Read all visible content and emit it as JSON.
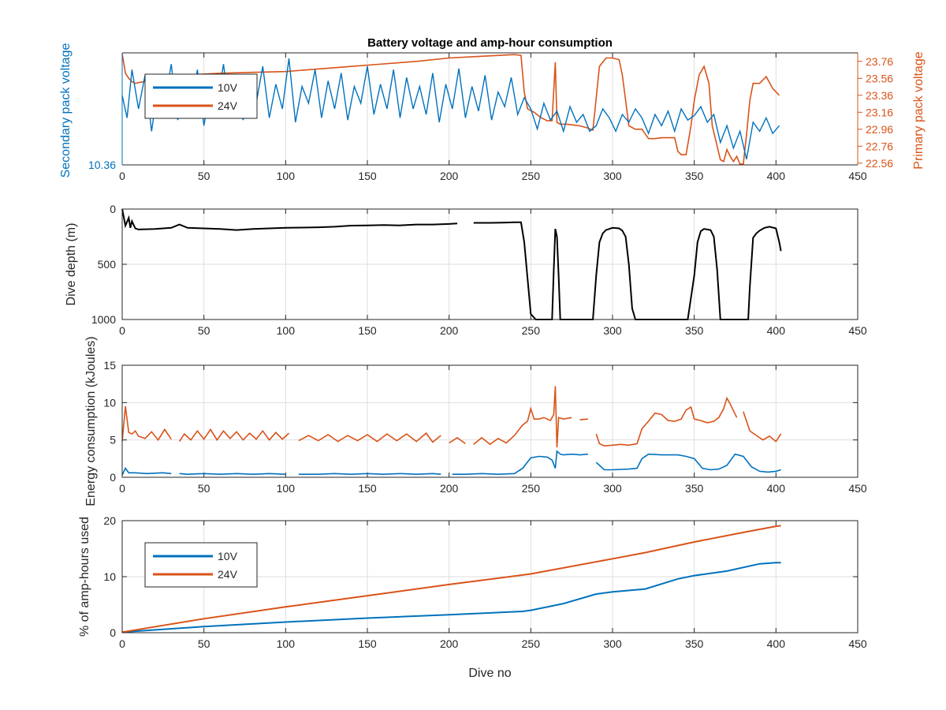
{
  "figure": {
    "title": "Battery voltage and amp-hour consumption",
    "xlabel": "Dive no",
    "colors": {
      "blue": "#0072bd",
      "orange": "#d95319",
      "black": "#000000",
      "grid": "#dedede",
      "axis": "#262626"
    }
  },
  "chart_data": [
    {
      "type": "line",
      "panel": "voltage",
      "title": "Battery voltage and amp-hour consumption",
      "xlabel": "",
      "ylabel_left": "Secondary pack voltage",
      "ylabel_right": "Primary pack voltage",
      "xlim": [
        0,
        450
      ],
      "x_ticks": [
        "0",
        "50",
        "100",
        "150",
        "200",
        "250",
        "300",
        "350",
        "400",
        "450"
      ],
      "y_left_ticks": [
        "10.36"
      ],
      "y_right_ticks": [
        "22.56",
        "22.76",
        "22.96",
        "23.16",
        "23.36",
        "23.56",
        "23.76"
      ],
      "ylim_right": [
        22.54,
        23.86
      ],
      "legend": {
        "placement": "top-left",
        "entries": [
          "10V",
          "24V"
        ]
      },
      "grid": true,
      "series": [
        {
          "name": "10V",
          "axis": "left",
          "color": "#0072bd",
          "x": [
            0,
            3,
            6,
            10,
            14,
            18,
            22,
            26,
            30,
            34,
            38,
            42,
            46,
            50,
            54,
            58,
            62,
            66,
            70,
            74,
            78,
            82,
            86,
            90,
            94,
            98,
            102,
            106,
            110,
            114,
            118,
            122,
            126,
            130,
            134,
            138,
            142,
            146,
            150,
            154,
            158,
            162,
            166,
            170,
            174,
            178,
            182,
            186,
            190,
            194,
            198,
            202,
            206,
            210,
            214,
            218,
            222,
            226,
            230,
            234,
            238,
            242,
            246,
            250,
            254,
            258,
            262,
            266,
            270,
            274,
            278,
            282,
            286,
            290,
            294,
            298,
            302,
            306,
            310,
            314,
            318,
            322,
            326,
            330,
            334,
            338,
            342,
            346,
            350,
            354,
            358,
            362,
            366,
            370,
            374,
            378,
            382,
            386,
            390,
            394,
            398,
            402
          ],
          "y": [
            0.62,
            0.42,
            0.85,
            0.5,
            0.8,
            0.3,
            0.72,
            0.55,
            0.9,
            0.4,
            0.75,
            0.5,
            0.85,
            0.35,
            0.7,
            0.52,
            0.9,
            0.45,
            0.68,
            0.4,
            0.78,
            0.55,
            0.88,
            0.42,
            0.72,
            0.5,
            0.95,
            0.38,
            0.7,
            0.55,
            0.85,
            0.42,
            0.75,
            0.5,
            0.82,
            0.4,
            0.7,
            0.55,
            0.88,
            0.45,
            0.72,
            0.5,
            0.85,
            0.42,
            0.78,
            0.5,
            0.7,
            0.45,
            0.82,
            0.38,
            0.72,
            0.5,
            0.86,
            0.42,
            0.7,
            0.48,
            0.8,
            0.4,
            0.65,
            0.52,
            0.78,
            0.45,
            0.6,
            0.5,
            0.32,
            0.55,
            0.4,
            0.48,
            0.3,
            0.52,
            0.38,
            0.45,
            0.3,
            0.35,
            0.5,
            0.42,
            0.3,
            0.45,
            0.38,
            0.5,
            0.42,
            0.28,
            0.45,
            0.35,
            0.48,
            0.3,
            0.5,
            0.4,
            0.44,
            0.52,
            0.38,
            0.45,
            0.2,
            0.35,
            0.15,
            0.3,
            0.05,
            0.38,
            0.3,
            0.42,
            0.28,
            0.35
          ]
        },
        {
          "name": "24V",
          "axis": "right",
          "color": "#d95319",
          "x": [
            0,
            2,
            4,
            6,
            8,
            20,
            40,
            60,
            80,
            100,
            120,
            140,
            160,
            180,
            200,
            220,
            240,
            244,
            246,
            248,
            252,
            256,
            260,
            263,
            265,
            266,
            268,
            272,
            276,
            280,
            284,
            288,
            292,
            296,
            300,
            304,
            306,
            308,
            310,
            314,
            318,
            322,
            326,
            330,
            334,
            338,
            340,
            342,
            345,
            348,
            350,
            353,
            356,
            359,
            361,
            364,
            366,
            368,
            370,
            372,
            374,
            376,
            378,
            380,
            382,
            384,
            386,
            388,
            390,
            394,
            398,
            402
          ],
          "y": [
            23.85,
            23.62,
            23.56,
            23.52,
            23.5,
            23.55,
            23.6,
            23.62,
            23.63,
            23.64,
            23.67,
            23.7,
            23.73,
            23.76,
            23.8,
            23.82,
            23.84,
            23.83,
            23.4,
            23.2,
            23.16,
            23.1,
            23.06,
            23.06,
            23.75,
            23.04,
            23.02,
            23.02,
            23.01,
            23.0,
            22.98,
            22.95,
            23.7,
            23.8,
            23.8,
            23.78,
            23.6,
            23.3,
            23.0,
            22.96,
            22.96,
            22.85,
            22.85,
            22.86,
            22.86,
            22.86,
            22.7,
            22.66,
            22.66,
            23.0,
            23.3,
            23.6,
            23.7,
            23.5,
            23.0,
            22.76,
            22.6,
            22.58,
            22.72,
            22.64,
            22.58,
            22.64,
            22.55,
            22.55,
            22.9,
            23.3,
            23.5,
            23.5,
            23.5,
            23.58,
            23.44,
            23.36
          ]
        }
      ]
    },
    {
      "type": "line",
      "panel": "depth",
      "title": "",
      "xlabel": "",
      "ylabel": "Dive depth (m)",
      "xlim": [
        0,
        450
      ],
      "ylim": [
        0,
        1000
      ],
      "y_reversed": true,
      "x_ticks": [
        "0",
        "50",
        "100",
        "150",
        "200",
        "250",
        "300",
        "350",
        "400",
        "450"
      ],
      "y_ticks": [
        "0",
        "500",
        "1000"
      ],
      "grid": true,
      "series": [
        {
          "name": "",
          "color": "#000000",
          "x": [
            0,
            2,
            4,
            5,
            6,
            8,
            10,
            20,
            30,
            35,
            40,
            50,
            60,
            70,
            80,
            90,
            100,
            110,
            120,
            130,
            140,
            150,
            160,
            170,
            180,
            190,
            200,
            205,
            210,
            215,
            225,
            235,
            240,
            244,
            246,
            250,
            253,
            256,
            260,
            263,
            264,
            265,
            266,
            267,
            268,
            270,
            275,
            285,
            288,
            290,
            292,
            294,
            296,
            300,
            304,
            306,
            308,
            310,
            312,
            314,
            316,
            320,
            330,
            340,
            346,
            350,
            352,
            354,
            356,
            360,
            362,
            364,
            366,
            368,
            370,
            375,
            383,
            384,
            386,
            388,
            390,
            393,
            396,
            400,
            402,
            403
          ],
          "y": [
            0,
            150,
            80,
            170,
            110,
            175,
            185,
            180,
            170,
            140,
            170,
            175,
            180,
            190,
            180,
            175,
            170,
            168,
            165,
            160,
            150,
            148,
            145,
            148,
            140,
            140,
            135,
            130,
            null,
            125,
            125,
            122,
            120,
            120,
            300,
            950,
            1000,
            1000,
            1000,
            1000,
            560,
            180,
            250,
            600,
            1000,
            1000,
            1000,
            1000,
            1000,
            600,
            300,
            220,
            190,
            170,
            175,
            195,
            250,
            500,
            900,
            1000,
            1000,
            1000,
            1000,
            1000,
            1000,
            600,
            300,
            200,
            180,
            190,
            250,
            550,
            1000,
            1000,
            1000,
            1000,
            1000,
            700,
            260,
            220,
            195,
            170,
            160,
            175,
            300,
            380
          ]
        }
      ]
    },
    {
      "type": "line",
      "panel": "energy",
      "title": "",
      "xlabel": "",
      "ylabel": "Energy consumption (kJoules)",
      "xlim": [
        0,
        450
      ],
      "ylim": [
        0,
        15
      ],
      "x_ticks": [
        "0",
        "50",
        "100",
        "150",
        "200",
        "250",
        "300",
        "350",
        "400",
        "450"
      ],
      "y_ticks": [
        "0",
        "5",
        "10",
        "15"
      ],
      "grid": true,
      "series": [
        {
          "name": "24V",
          "color": "#d95319",
          "x": [
            0,
            2,
            4,
            6,
            8,
            10,
            14,
            18,
            22,
            26,
            30,
            null,
            35,
            38,
            42,
            46,
            50,
            54,
            58,
            62,
            66,
            70,
            74,
            78,
            82,
            86,
            90,
            94,
            98,
            102,
            null,
            108,
            114,
            120,
            126,
            132,
            138,
            144,
            150,
            156,
            162,
            168,
            174,
            180,
            186,
            190,
            195,
            null,
            200,
            205,
            210,
            null,
            215,
            220,
            225,
            230,
            235,
            240,
            245,
            248,
            250,
            252,
            255,
            258,
            262,
            264,
            265,
            266,
            267,
            270,
            275,
            null,
            280,
            285,
            null,
            290,
            292,
            295,
            300,
            305,
            310,
            315,
            318,
            322,
            326,
            330,
            334,
            338,
            342,
            345,
            348,
            350,
            354,
            358,
            362,
            365,
            368,
            370,
            372,
            376,
            null,
            380,
            384,
            388,
            392,
            396,
            400,
            403
          ],
          "y": [
            4.8,
            9.5,
            6.0,
            5.8,
            6.2,
            5.5,
            5.2,
            6.1,
            5.0,
            6.4,
            5.1,
            null,
            4.8,
            5.8,
            5.0,
            6.2,
            5.1,
            6.4,
            5.0,
            6.2,
            5.2,
            6.1,
            5.0,
            5.9,
            5.1,
            6.2,
            5.0,
            6.0,
            5.1,
            5.9,
            null,
            4.9,
            5.6,
            4.9,
            5.7,
            4.8,
            5.6,
            4.9,
            5.7,
            4.8,
            5.8,
            4.9,
            5.8,
            4.8,
            5.9,
            4.7,
            5.6,
            null,
            4.6,
            5.3,
            4.5,
            null,
            4.4,
            5.3,
            4.4,
            5.2,
            4.6,
            5.6,
            7.0,
            7.5,
            9.2,
            7.8,
            7.8,
            8.0,
            7.6,
            8.4,
            12.2,
            4.0,
            8.0,
            7.8,
            8.0,
            null,
            7.7,
            7.8,
            null,
            5.8,
            4.5,
            4.2,
            4.3,
            4.4,
            4.3,
            4.5,
            6.5,
            7.5,
            8.6,
            8.4,
            7.6,
            7.5,
            7.8,
            9.0,
            9.4,
            7.8,
            7.6,
            7.3,
            7.5,
            8.0,
            9.2,
            10.6,
            9.8,
            8.0,
            null,
            8.8,
            6.2,
            5.6,
            5.0,
            5.5,
            4.8,
            5.8
          ]
        },
        {
          "name": "10V",
          "color": "#0072bd",
          "x": [
            0,
            2,
            4,
            8,
            15,
            25,
            30,
            null,
            35,
            40,
            50,
            60,
            70,
            80,
            90,
            100,
            null,
            108,
            120,
            130,
            140,
            150,
            160,
            170,
            180,
            190,
            195,
            null,
            202,
            210,
            220,
            230,
            240,
            245,
            250,
            255,
            260,
            263,
            265,
            266,
            268,
            270,
            275,
            280,
            285,
            null,
            290,
            295,
            300,
            310,
            315,
            318,
            322,
            330,
            340,
            345,
            350,
            355,
            360,
            365,
            370,
            375,
            380,
            385,
            390,
            395,
            400,
            403
          ],
          "y": [
            0.3,
            1.2,
            0.6,
            0.6,
            0.5,
            0.6,
            0.5,
            null,
            0.5,
            0.4,
            0.5,
            0.4,
            0.5,
            0.4,
            0.5,
            0.4,
            null,
            0.4,
            0.4,
            0.5,
            0.4,
            0.5,
            0.4,
            0.5,
            0.4,
            0.5,
            0.4,
            null,
            0.4,
            0.4,
            0.5,
            0.4,
            0.5,
            1.2,
            2.6,
            2.8,
            2.7,
            2.3,
            1.2,
            3.5,
            3.1,
            3.0,
            3.1,
            3.0,
            3.1,
            null,
            2.0,
            1.0,
            1.0,
            1.1,
            1.2,
            2.5,
            3.1,
            3.0,
            3.0,
            2.8,
            2.5,
            1.2,
            1.0,
            1.1,
            1.6,
            3.1,
            2.8,
            1.4,
            0.8,
            0.7,
            0.8,
            1.0
          ]
        }
      ]
    },
    {
      "type": "line",
      "panel": "amp-hours",
      "title": "",
      "xlabel": "Dive no",
      "ylabel": "% of amp-hours used",
      "xlim": [
        0,
        450
      ],
      "ylim": [
        0,
        20
      ],
      "x_ticks": [
        "0",
        "50",
        "100",
        "150",
        "200",
        "250",
        "300",
        "350",
        "400",
        "450"
      ],
      "y_ticks": [
        "0",
        "10",
        "20"
      ],
      "legend": {
        "placement": "top-left",
        "entries": [
          "10V",
          "24V"
        ]
      },
      "grid": true,
      "series": [
        {
          "name": "10V",
          "color": "#0072bd",
          "x": [
            0,
            50,
            100,
            150,
            200,
            245,
            250,
            270,
            290,
            300,
            320,
            340,
            350,
            370,
            390,
            400,
            403
          ],
          "y": [
            0.1,
            1.1,
            1.9,
            2.6,
            3.2,
            3.8,
            4.0,
            5.2,
            6.9,
            7.3,
            7.8,
            9.6,
            10.2,
            11.0,
            12.3,
            12.5,
            12.5
          ]
        },
        {
          "name": "24V",
          "color": "#d95319",
          "x": [
            0,
            50,
            100,
            150,
            200,
            250,
            300,
            320,
            350,
            380,
            400,
            403
          ],
          "y": [
            0.1,
            2.5,
            4.6,
            6.6,
            8.6,
            10.5,
            13.2,
            14.3,
            16.2,
            17.9,
            19.0,
            19.1
          ]
        }
      ]
    }
  ]
}
